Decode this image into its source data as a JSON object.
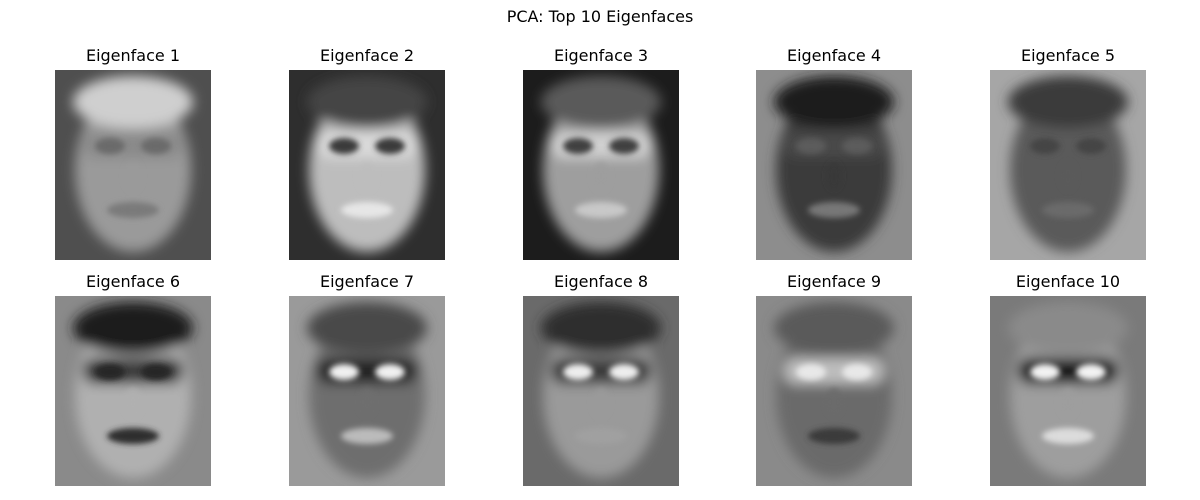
{
  "figure": {
    "title": "PCA: Top 10 Eigenfaces"
  },
  "eigenfaces": [
    {
      "label": "Eigenface 1",
      "bg": "#4f4f4f",
      "face": "#9a9a9a",
      "hair": "#cfcfcf",
      "eyes": "#6a6a6a",
      "mouth": "#7a7a7a",
      "eyeband": "#8a8a8a"
    },
    {
      "label": "Eigenface 2",
      "bg": "#2e2e2e",
      "face": "#bdbdbd",
      "hair": "#444444",
      "eyes": "#3a3a3a",
      "mouth": "#e6e6e6",
      "eyeband": "#d9d9d9"
    },
    {
      "label": "Eigenface 3",
      "bg": "#1c1c1c",
      "face": "#9e9e9e",
      "hair": "#5a5a5a",
      "eyes": "#3f3f3f",
      "mouth": "#c8c8c8",
      "eyeband": "#d0d0d0"
    },
    {
      "label": "Eigenface 4",
      "bg": "#8d8d8d",
      "face": "#3a3a3a",
      "hair": "#1e1e1e",
      "eyes": "#5c5c5c",
      "mouth": "#777777",
      "eyeband": "#4a4a4a"
    },
    {
      "label": "Eigenface 5",
      "bg": "#a6a6a6",
      "face": "#5a5a5a",
      "hair": "#3a3a3a",
      "eyes": "#444444",
      "mouth": "#6a6a6a",
      "eyeband": "#5a5a5a"
    },
    {
      "label": "Eigenface 6",
      "bg": "#8a8a8a",
      "face": "#b0b0b0",
      "hair": "#1a1a1a",
      "eyes": "#262626",
      "mouth": "#2e2e2e",
      "eyeband": "#3a3a3a"
    },
    {
      "label": "Eigenface 7",
      "bg": "#9a9a9a",
      "face": "#6e6e6e",
      "hair": "#4a4a4a",
      "eyes": "#f0f0f0",
      "mouth": "#bbbbbb",
      "eyeband": "#202020"
    },
    {
      "label": "Eigenface 8",
      "bg": "#6a6a6a",
      "face": "#9a9a9a",
      "hair": "#2e2e2e",
      "eyes": "#ededed",
      "mouth": "#a0a0a0",
      "eyeband": "#3a3a3a"
    },
    {
      "label": "Eigenface 9",
      "bg": "#8a8a8a",
      "face": "#6a6a6a",
      "hair": "#5a5a5a",
      "eyes": "#e8e8e8",
      "mouth": "#3a3a3a",
      "eyeband": "#bdbdbd"
    },
    {
      "label": "Eigenface 10",
      "bg": "#7a7a7a",
      "face": "#9e9e9e",
      "hair": "#8a8a8a",
      "eyes": "#f2f2f2",
      "mouth": "#dcdcdc",
      "eyeband": "#151515"
    }
  ]
}
